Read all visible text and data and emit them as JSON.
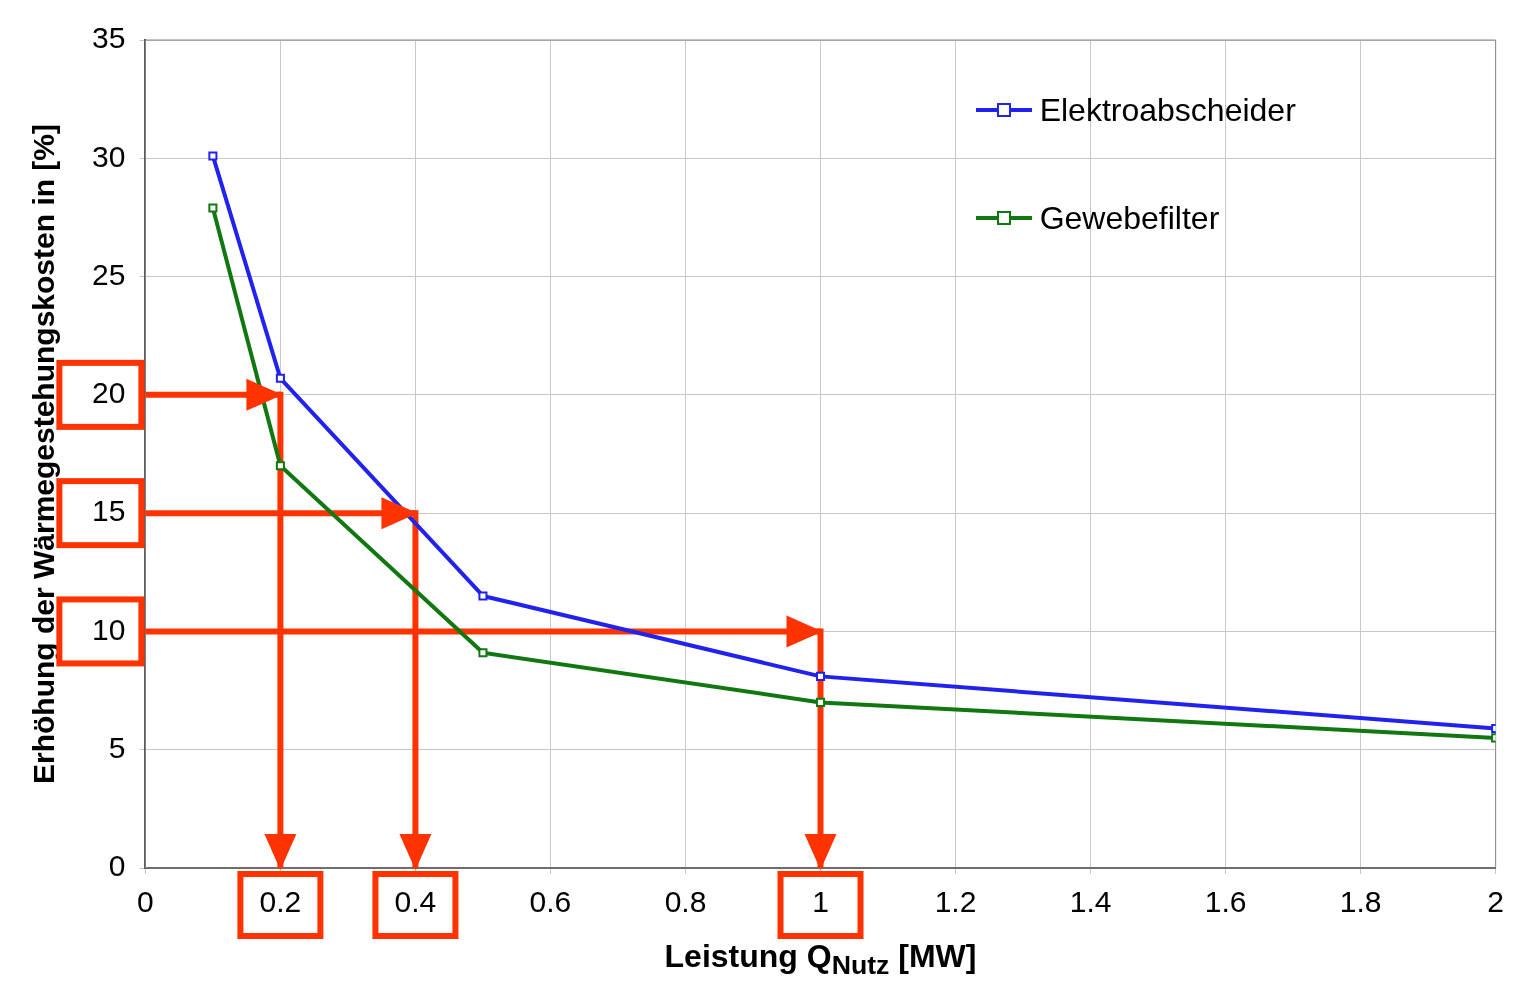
{
  "chart_data": {
    "type": "line",
    "xlabel": "Leistung Q$_{Nutz}$  [MW]",
    "ylabel": "Erhöhung der Wärmegestehungskosten in  [%]",
    "x": [
      0.1,
      0.2,
      0.5,
      1,
      2
    ],
    "series": [
      {
        "name": "Elektroabscheider",
        "color": "#2222ee",
        "values": [
          30.1,
          20.7,
          11.5,
          8.1,
          5.9
        ]
      },
      {
        "name": "Gewebefilter",
        "color": "#117711",
        "values": [
          27.9,
          17.0,
          9.1,
          7.0,
          5.5
        ]
      }
    ],
    "xlim": [
      0,
      2
    ],
    "xticks": [
      0,
      0.2,
      0.4,
      0.6,
      0.8,
      1,
      1.2,
      1.4,
      1.6,
      1.8,
      2
    ],
    "ylim": [
      0,
      35
    ],
    "yticks": [
      0,
      5,
      10,
      15,
      20,
      25,
      30,
      35
    ],
    "ref_lines": [
      {
        "axis": "y",
        "value": 20,
        "color": "#ff3300"
      },
      {
        "axis": "y",
        "value": 15,
        "color": "#ff3300"
      },
      {
        "axis": "y",
        "value": 10,
        "color": "#ff3300"
      },
      {
        "axis": "x",
        "value": 0.2,
        "color": "#ff3300"
      },
      {
        "axis": "x",
        "value": 0.4,
        "color": "#ff3300"
      },
      {
        "axis": "x",
        "value": 1,
        "color": "#ff3300"
      }
    ],
    "grid": true,
    "legend": "top right",
    "marker": "square",
    "line_style": "solid"
  }
}
